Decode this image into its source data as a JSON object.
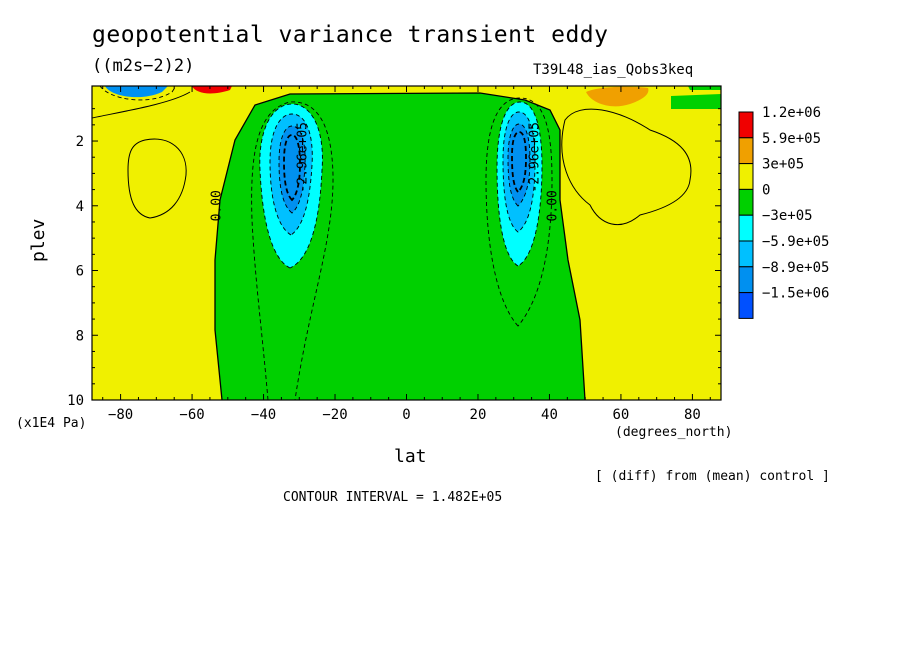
{
  "chart_data": {
    "type": "contour",
    "title": "geopotential variance transient eddy",
    "units": "((m2s−2)2)",
    "run_label": "T39L48_ias_Qobs3keq",
    "xlabel": "lat",
    "xunit": "(degrees_north)",
    "ylabel": "plev",
    "yunit": "(x1E4 Pa)",
    "note": "[ (diff) from (mean) control ]",
    "contour_interval_text": "CONTOUR INTERVAL = 1.482E+05",
    "contour_interval": 148200,
    "xlim": [
      -88,
      88
    ],
    "ylim": [
      10,
      0.3
    ],
    "y_reversed": true,
    "x_ticks": [
      -80,
      -60,
      -40,
      -20,
      0,
      20,
      40,
      60,
      80
    ],
    "y_ticks": [
      2,
      4,
      6,
      8,
      10
    ],
    "colorbar": {
      "labels": [
        "1.2e+06",
        "5.9e+05",
        "3e+05",
        "0",
        "−3e+05",
        "−5.9e+05",
        "−8.9e+05",
        "−1.5e+06"
      ],
      "colors": [
        "#f00000",
        "#f0a000",
        "#f0f000",
        "#00d000",
        "#00ffff",
        "#00c0ff",
        "#0090f0",
        "#0050ff"
      ]
    },
    "contour_labels": [
      {
        "text": "0.00",
        "x": -52,
        "y": 4.0
      },
      {
        "text": "0.00",
        "x": 42,
        "y": 4.0
      },
      {
        "text": "-2.96e+05",
        "x": -28,
        "y": 2.5
      },
      {
        "text": "-2.96e+05",
        "x": 37,
        "y": 2.5
      }
    ],
    "regions": [
      {
        "name": "negative-band",
        "level": "0",
        "x_range": [
          -52,
          49
        ],
        "y_range": [
          0.7,
          10
        ]
      },
      {
        "name": "southern-minimum",
        "level": "−8.9e+05",
        "center": [
          -32,
          2.8
        ]
      },
      {
        "name": "northern-minimum",
        "level": "−8.9e+05",
        "center": [
          31,
          2.5
        ]
      },
      {
        "name": "southern-top-maximum",
        "level": "1.2e+06",
        "center": [
          -50,
          0.3
        ]
      },
      {
        "name": "northern-top-maximum",
        "level": "5.9e+05",
        "center": [
          62,
          0.5
        ]
      }
    ]
  }
}
